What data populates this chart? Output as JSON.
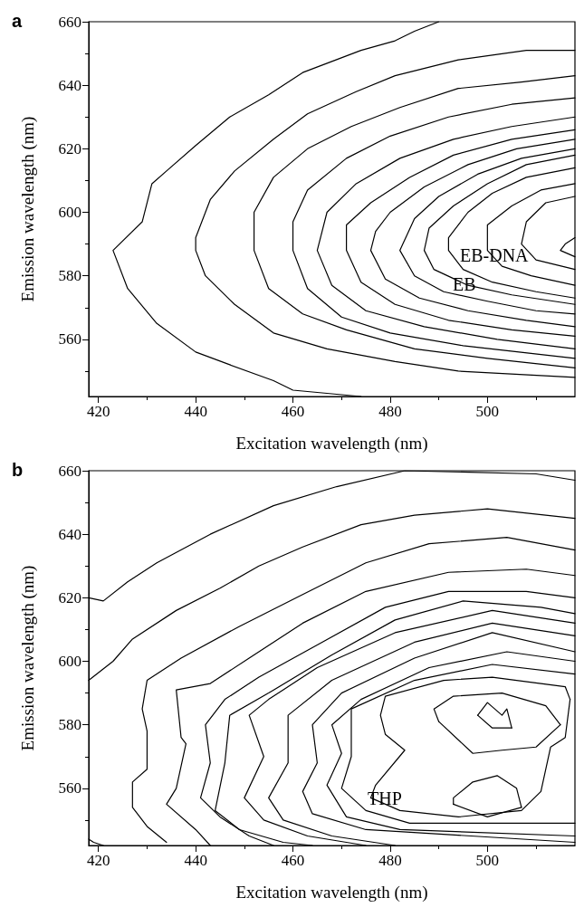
{
  "chart_data": [
    {
      "type": "line",
      "title": "a",
      "xlabel": "Excitation wavelength (nm)",
      "ylabel": "Emission wavelength (nm)",
      "xlim": [
        418,
        518
      ],
      "ylim": [
        542,
        660
      ],
      "xticks": [
        420,
        440,
        460,
        480,
        500
      ],
      "yticks": [
        560,
        580,
        600,
        620,
        640,
        660
      ],
      "grid": false,
      "marker": "none",
      "line_style": "solid",
      "annotations": [
        "EB-DNA",
        "EB"
      ],
      "series": [
        {
          "color": "#000000",
          "x": [
            490,
            485,
            481,
            474,
            462,
            455,
            447,
            440,
            434,
            431,
            429,
            423,
            426,
            432,
            440,
            447,
            456,
            460,
            474
          ],
          "values": [
            660,
            657,
            654,
            651,
            644,
            637,
            630,
            621,
            613,
            609,
            597,
            588,
            576,
            565,
            556,
            552,
            547,
            544,
            542
          ]
        },
        {
          "color": "#000000",
          "x": [
            518,
            508,
            494,
            481,
            473,
            463,
            456,
            448,
            443,
            440,
            440,
            442,
            448,
            456,
            467,
            481,
            494,
            518
          ],
          "values": [
            651,
            651,
            648,
            643,
            638,
            631,
            623,
            613,
            604,
            592,
            588,
            580,
            571,
            562,
            557,
            553,
            550,
            548
          ]
        },
        {
          "color": "#000000",
          "x": [
            518,
            507,
            494,
            482,
            472,
            463,
            456,
            452,
            452,
            455,
            462,
            471,
            485,
            500,
            518
          ],
          "values": [
            643,
            641,
            639,
            633,
            627,
            620,
            611,
            600,
            588,
            576,
            568,
            563,
            557,
            554,
            551
          ]
        },
        {
          "color": "#000000",
          "x": [
            518,
            505,
            492,
            480,
            471,
            463,
            460,
            460,
            463,
            470,
            480,
            495,
            518
          ],
          "values": [
            636,
            634,
            630,
            624,
            617,
            607,
            597,
            588,
            576,
            567,
            562,
            558,
            554
          ]
        },
        {
          "color": "#000000",
          "x": [
            518,
            505,
            493,
            482,
            473,
            467,
            465,
            468,
            475,
            487,
            502,
            518
          ],
          "values": [
            630,
            627,
            623,
            617,
            609,
            600,
            588,
            577,
            569,
            564,
            560,
            557
          ]
        },
        {
          "color": "#000000",
          "x": [
            518,
            505,
            493,
            484,
            476,
            471,
            471,
            474,
            481,
            492,
            505,
            518
          ],
          "values": [
            626,
            623,
            618,
            611,
            603,
            596,
            588,
            578,
            571,
            566,
            563,
            561
          ]
        },
        {
          "color": "#000000",
          "x": [
            518,
            506,
            496,
            487,
            480,
            477,
            476,
            479,
            486,
            496,
            508,
            518
          ],
          "values": [
            623,
            620,
            615,
            608,
            600,
            594,
            588,
            579,
            573,
            569,
            566,
            564
          ]
        },
        {
          "color": "#000000",
          "x": [
            518,
            507,
            498,
            490,
            485,
            482,
            485,
            491,
            500,
            510,
            518
          ],
          "values": [
            620,
            617,
            612,
            605,
            598,
            588,
            580,
            575,
            572,
            569,
            568
          ]
        },
        {
          "color": "#000000",
          "x": [
            518,
            508,
            500,
            493,
            488,
            487,
            489,
            496,
            505,
            518
          ],
          "values": [
            618,
            615,
            609,
            602,
            595,
            588,
            582,
            577,
            574,
            571
          ]
        },
        {
          "color": "#000000",
          "x": [
            518,
            508,
            501,
            496,
            492,
            492,
            495,
            501,
            510,
            518
          ],
          "values": [
            614,
            611,
            606,
            600,
            592,
            588,
            582,
            578,
            575,
            573
          ]
        },
        {
          "color": "#000000",
          "x": [
            518,
            511,
            505,
            500,
            500,
            503,
            509,
            518
          ],
          "values": [
            609,
            607,
            602,
            596,
            588,
            583,
            580,
            577
          ]
        },
        {
          "color": "#000000",
          "x": [
            518,
            512,
            508,
            507,
            510,
            518
          ],
          "values": [
            605,
            603,
            597,
            590,
            585,
            582
          ]
        },
        {
          "color": "#000000",
          "x": [
            518,
            516,
            515,
            518
          ],
          "values": [
            592,
            590,
            588,
            586
          ]
        }
      ]
    },
    {
      "type": "line",
      "title": "b",
      "xlabel": "Excitation wavelength (nm)",
      "ylabel": "Emission wavelength (nm)",
      "xlim": [
        418,
        518
      ],
      "ylim": [
        542,
        660
      ],
      "xticks": [
        420,
        440,
        460,
        480,
        500
      ],
      "yticks": [
        560,
        580,
        600,
        620,
        640,
        660
      ],
      "grid": false,
      "marker": "none",
      "line_style": "solid",
      "annotations": [
        "THP"
      ],
      "series": [
        {
          "color": "#000000",
          "x": [
            518,
            510,
            483,
            469,
            456,
            443,
            432,
            426,
            421,
            418
          ],
          "values": [
            657,
            659,
            660,
            655,
            649,
            640,
            631,
            625,
            619,
            620
          ]
        },
        {
          "color": "#000000",
          "x": [
            518,
            500,
            485,
            474,
            462,
            453,
            445,
            436,
            427,
            423,
            418
          ],
          "values": [
            645,
            648,
            646,
            643,
            636,
            630,
            623,
            616,
            607,
            600,
            594
          ]
        },
        {
          "color": "#000000",
          "x": [
            518,
            504,
            488,
            475,
            462,
            449,
            437,
            430,
            429,
            430,
            430,
            427,
            427,
            430,
            434
          ],
          "values": [
            635,
            639,
            637,
            631,
            621,
            611,
            601,
            594,
            585,
            578,
            566,
            562,
            554,
            548,
            543
          ]
        },
        {
          "color": "#000000",
          "x": [
            518,
            508,
            492,
            475,
            462,
            451,
            443,
            436,
            437,
            438,
            436,
            434,
            440,
            443
          ],
          "values": [
            627,
            629,
            628,
            622,
            612,
            601,
            593,
            591,
            576,
            574,
            560,
            555,
            547,
            542
          ]
        },
        {
          "color": "#000000",
          "x": [
            518,
            508,
            492,
            479,
            466,
            453,
            446,
            442,
            443,
            441,
            445,
            451,
            456
          ],
          "values": [
            620,
            622,
            622,
            617,
            606,
            595,
            588,
            580,
            568,
            557,
            551,
            545,
            542
          ]
        },
        {
          "color": "#000000",
          "x": [
            518,
            511,
            495,
            481,
            468,
            455,
            447,
            446,
            444,
            449,
            458,
            464
          ],
          "values": [
            615,
            617,
            619,
            613,
            602,
            590,
            583,
            568,
            553,
            547,
            543,
            542
          ]
        },
        {
          "color": "#000000",
          "x": [
            518,
            501,
            481,
            465,
            455,
            451,
            454,
            450,
            454,
            463,
            475
          ],
          "values": [
            612,
            616,
            609,
            598,
            588,
            583,
            570,
            557,
            550,
            545,
            542
          ]
        },
        {
          "color": "#000000",
          "x": [
            518,
            501,
            485,
            468,
            459,
            459,
            455,
            458,
            468,
            481
          ],
          "values": [
            608,
            612,
            606,
            594,
            583,
            568,
            557,
            550,
            545,
            542
          ]
        },
        {
          "color": "#000000",
          "x": [
            518,
            501,
            485,
            470,
            464,
            465,
            462,
            464,
            475,
            518
          ],
          "values": [
            603,
            609,
            601,
            590,
            580,
            568,
            559,
            552,
            547,
            543
          ]
        },
        {
          "color": "#000000",
          "x": [
            518,
            504,
            488,
            474,
            468,
            470,
            467,
            471,
            482,
            518
          ],
          "values": [
            600,
            603,
            598,
            588,
            580,
            571,
            561,
            551,
            547,
            545
          ]
        },
        {
          "color": "#000000",
          "x": [
            518,
            501,
            485,
            472,
            472,
            472,
            470,
            475,
            484,
            518
          ],
          "values": [
            596,
            599,
            594,
            585,
            574,
            570,
            560,
            553,
            549,
            549
          ]
        },
        {
          "color": "#000000",
          "x": [
            517,
            516,
            511,
            501,
            491,
            479,
            478,
            479,
            483,
            477,
            476
          ],
          "values": [
            588,
            592,
            593,
            595,
            594,
            589,
            583,
            577,
            572,
            561,
            557
          ]
        },
        {
          "color": "#000000",
          "x": [
            476,
            482,
            494,
            507,
            511,
            513,
            516,
            517
          ],
          "values": [
            557,
            553,
            551,
            553,
            559,
            573,
            576,
            588
          ]
        },
        {
          "color": "#000000",
          "x": [
            515,
            512,
            503,
            493,
            489,
            490
          ],
          "values": [
            580,
            586,
            590,
            589,
            585,
            581
          ]
        },
        {
          "color": "#000000",
          "x": [
            490,
            497,
            503,
            510,
            515
          ],
          "values": [
            581,
            571,
            572,
            573,
            580
          ]
        },
        {
          "color": "#000000",
          "x": [
            493,
            493,
            497,
            502,
            506,
            507
          ],
          "values": [
            555,
            557,
            562,
            564,
            560,
            554
          ]
        },
        {
          "color": "#000000",
          "x": [
            507,
            500,
            493
          ],
          "values": [
            554,
            551,
            555
          ]
        },
        {
          "color": "#000000",
          "x": [
            498,
            500,
            503,
            504,
            505
          ],
          "values": [
            583,
            587,
            583,
            585,
            579
          ]
        },
        {
          "color": "#000000",
          "x": [
            505,
            501,
            498
          ],
          "values": [
            579,
            579,
            583
          ]
        },
        {
          "color": "#000000",
          "x": [
            418,
            419,
            421
          ],
          "values": [
            544,
            543,
            542
          ]
        }
      ]
    }
  ]
}
